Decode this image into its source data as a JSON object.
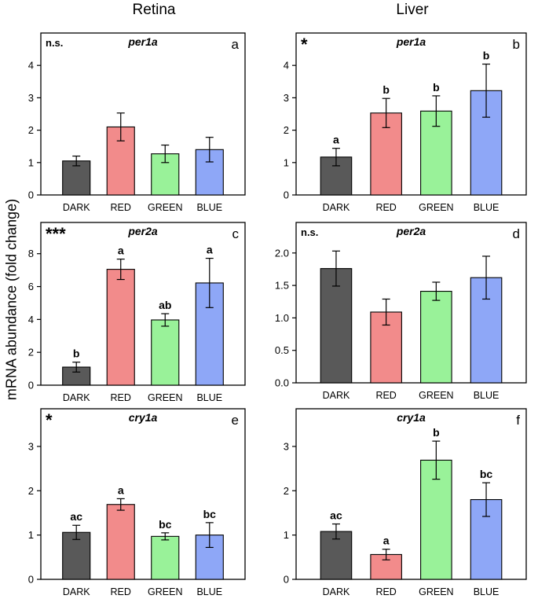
{
  "columns": {
    "left": "Retina",
    "right": "Liver"
  },
  "y_axis_label": "mRNA abundance (fold change)",
  "colors": {
    "DARK": "#595959",
    "RED": "#f28b8b",
    "GREEN": "#99f299",
    "BLUE": "#8ea7f7"
  },
  "chart_data": [
    {
      "type": "bar",
      "panel": "a",
      "tissue": "Retina",
      "gene": "per1a",
      "significance": "n.s.",
      "categories": [
        "DARK",
        "RED",
        "GREEN",
        "BLUE"
      ],
      "values": [
        1.05,
        2.1,
        1.27,
        1.4
      ],
      "errors": [
        0.15,
        0.43,
        0.27,
        0.38
      ],
      "letters": [
        "",
        "",
        "",
        ""
      ],
      "ylim": [
        0,
        5
      ],
      "yticks": [
        "0",
        "1",
        "2",
        "3",
        "4"
      ],
      "ytick_values": [
        0,
        1,
        2,
        3,
        4
      ]
    },
    {
      "type": "bar",
      "panel": "b",
      "tissue": "Liver",
      "gene": "per1a",
      "significance": "*",
      "categories": [
        "DARK",
        "RED",
        "GREEN",
        "BLUE"
      ],
      "values": [
        1.17,
        2.53,
        2.59,
        3.22
      ],
      "errors": [
        0.27,
        0.45,
        0.47,
        0.82
      ],
      "letters": [
        "a",
        "b",
        "b",
        "b"
      ],
      "ylim": [
        0,
        5
      ],
      "yticks": [
        "0",
        "1",
        "2",
        "3",
        "4"
      ],
      "ytick_values": [
        0,
        1,
        2,
        3,
        4
      ]
    },
    {
      "type": "bar",
      "panel": "c",
      "tissue": "Retina",
      "gene": "per2a",
      "significance": "***",
      "categories": [
        "DARK",
        "RED",
        "GREEN",
        "BLUE"
      ],
      "values": [
        1.1,
        7.05,
        3.97,
        6.22
      ],
      "errors": [
        0.3,
        0.62,
        0.38,
        1.5
      ],
      "letters": [
        "b",
        "a",
        "ab",
        "a"
      ],
      "ylim": [
        0,
        9.9
      ],
      "yticks": [
        "0",
        "2",
        "4",
        "6",
        "8"
      ],
      "ytick_values": [
        0,
        2,
        4,
        6,
        8
      ]
    },
    {
      "type": "bar",
      "panel": "d",
      "tissue": "Liver",
      "gene": "per2a",
      "significance": "n.s.",
      "categories": [
        "DARK",
        "RED",
        "GREEN",
        "BLUE"
      ],
      "values": [
        1.76,
        1.09,
        1.41,
        1.62
      ],
      "errors": [
        0.27,
        0.2,
        0.14,
        0.33
      ],
      "letters": [
        "",
        "",
        "",
        ""
      ],
      "ylim": [
        0,
        2.47
      ],
      "yticks": [
        "0.0",
        "0.5",
        "1.0",
        "1.5",
        "2.0"
      ],
      "ytick_values": [
        0,
        0.5,
        1,
        1.5,
        2
      ]
    },
    {
      "type": "bar",
      "panel": "e",
      "tissue": "Retina",
      "gene": "cry1a",
      "significance": "*",
      "categories": [
        "DARK",
        "RED",
        "GREEN",
        "BLUE"
      ],
      "values": [
        1.06,
        1.69,
        0.97,
        1.0
      ],
      "errors": [
        0.16,
        0.13,
        0.08,
        0.28
      ],
      "letters": [
        "ac",
        "a",
        "bc",
        "bc"
      ],
      "ylim": [
        0,
        3.85
      ],
      "yticks": [
        "0",
        "1",
        "2",
        "3"
      ],
      "ytick_values": [
        0,
        1,
        2,
        3
      ]
    },
    {
      "type": "bar",
      "panel": "f",
      "tissue": "Liver",
      "gene": "cry1a",
      "significance": "",
      "categories": [
        "DARK",
        "RED",
        "GREEN",
        "BLUE"
      ],
      "values": [
        1.08,
        0.56,
        2.69,
        1.8
      ],
      "errors": [
        0.17,
        0.12,
        0.43,
        0.38
      ],
      "letters": [
        "ac",
        "a",
        "b",
        "bc"
      ],
      "ylim": [
        0,
        3.85
      ],
      "yticks": [
        "0",
        "1",
        "2",
        "3"
      ],
      "ytick_values": [
        0,
        1,
        2,
        3
      ]
    }
  ]
}
